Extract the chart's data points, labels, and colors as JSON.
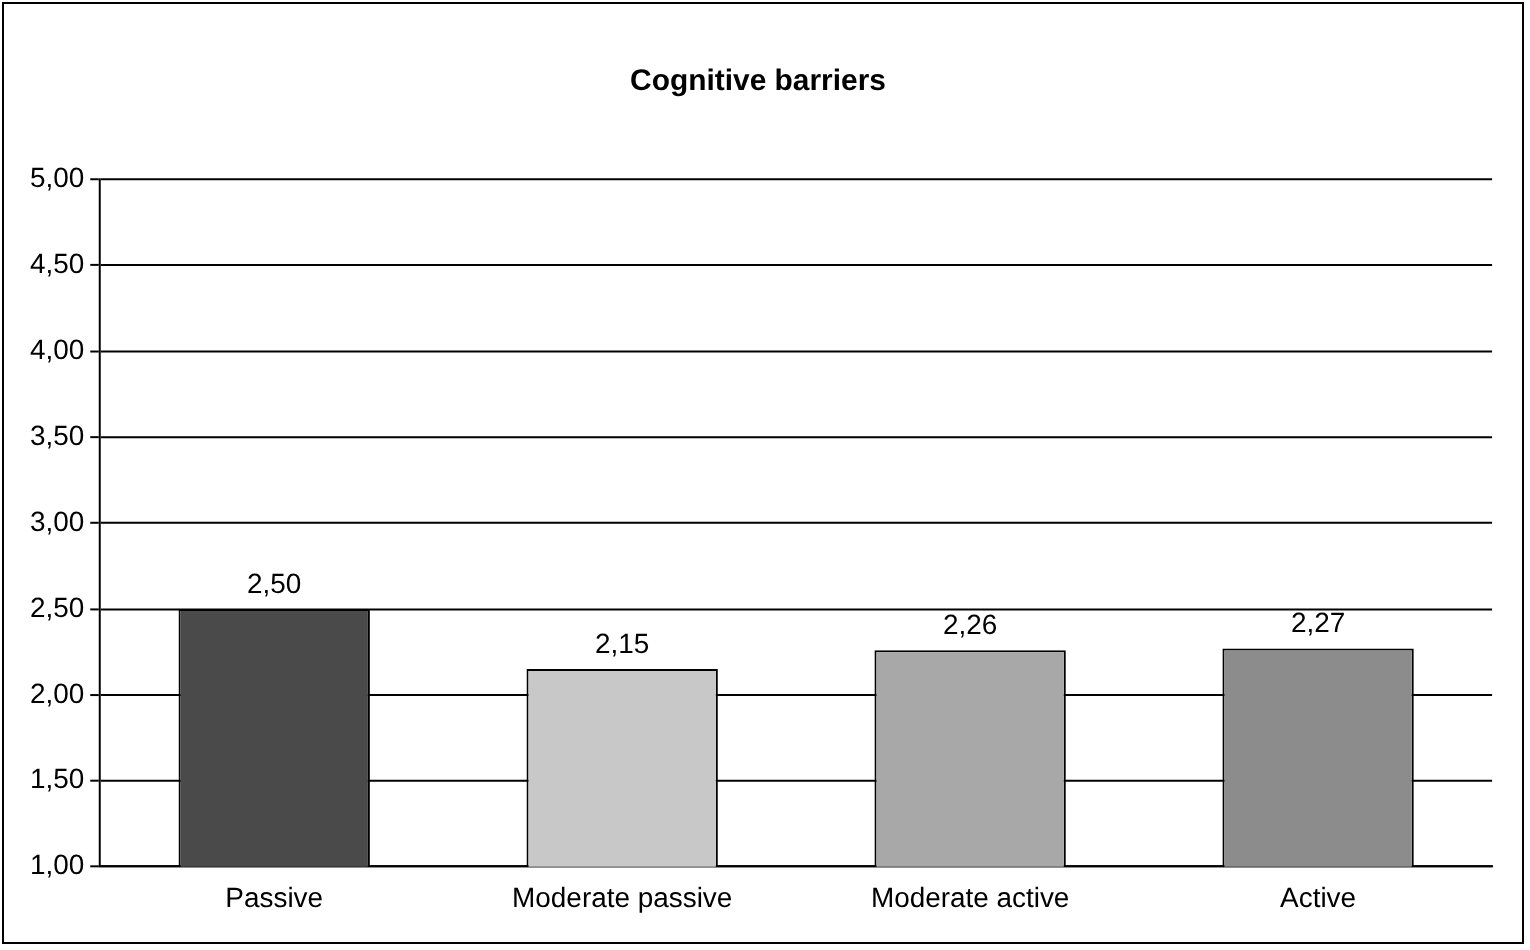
{
  "chart_data": {
    "type": "bar",
    "title": "Cognitive barriers",
    "categories": [
      "Passive",
      "Moderate passive",
      "Moderate active",
      "Active"
    ],
    "values": [
      2.5,
      2.15,
      2.26,
      2.27
    ],
    "colors": [
      "#4a4a4a",
      "#c8c8c8",
      "#a8a8a8",
      "#8c8c8c"
    ],
    "value_labels": [
      "2,50",
      "2,15",
      "2,26",
      "2,27"
    ],
    "ylim": [
      1,
      5
    ],
    "yticks": [
      {
        "value": 1,
        "label": "1,00"
      },
      {
        "value": 1.5,
        "label": "1,50"
      },
      {
        "value": 2,
        "label": "2,00"
      },
      {
        "value": 2.5,
        "label": "2,50"
      },
      {
        "value": 3,
        "label": "3,00"
      },
      {
        "value": 3.5,
        "label": "3,50"
      },
      {
        "value": 4,
        "label": "4,00"
      },
      {
        "value": 4.5,
        "label": "4,50"
      },
      {
        "value": 5,
        "label": "5,00"
      }
    ],
    "grid": "y",
    "legend": false
  }
}
